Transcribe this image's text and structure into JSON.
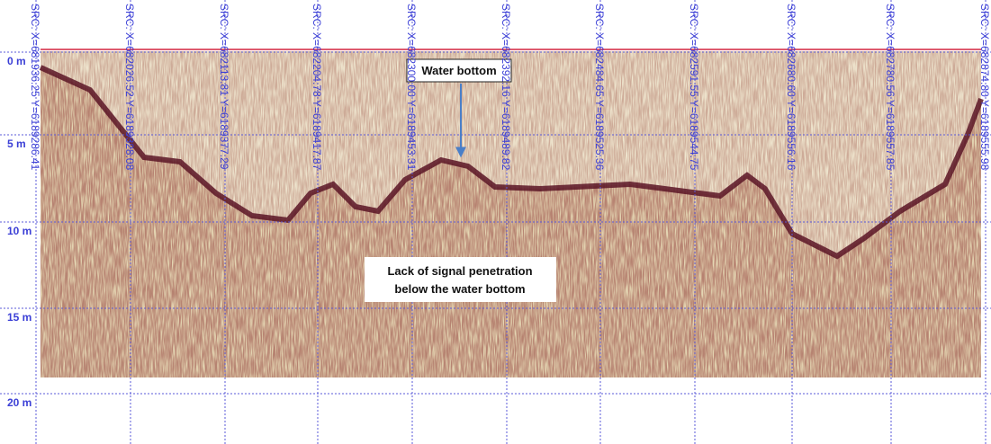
{
  "depth_labels": [
    "0 m",
    "5 m",
    "10 m",
    "15 m",
    "20 m"
  ],
  "source_labels": [
    "SRC: X=681936.25 Y=6189286.41",
    "SRC: X=682026.52 Y=6189328.08",
    "SRC: X=682113.81 Y=6189377.29",
    "SRC: X=682204.78 Y=6189417.87",
    "SRC: X=682300.00 Y=6189453.31",
    "SRC: X=682392.16 Y=6189489.82",
    "SRC: X=682484.65 Y=6189525.36",
    "SRC: X=682591.55 Y=6189544.75",
    "SRC: X=682680.60 Y=6189556.16",
    "SRC: X=682780.56 Y=6189557.85",
    "SRC: X=682874.80 Y=6189555.98"
  ],
  "annotations": {
    "water_bottom": "Water bottom",
    "penetration": [
      "Lack of signal penetration",
      "below the water bottom"
    ]
  }
}
